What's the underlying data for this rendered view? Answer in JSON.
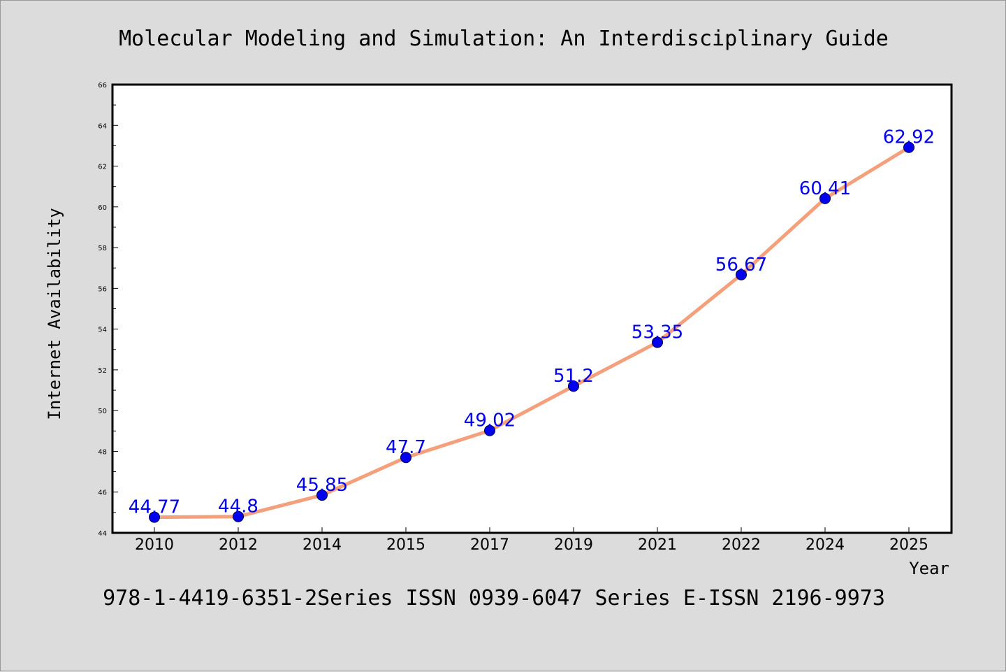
{
  "chart_data": {
    "type": "line",
    "title": "Molecular Modeling and Simulation: An Interdisciplinary Guide",
    "subtitle": "978-1-4419-6351-2Series ISSN 0939-6047 Series E-ISSN 2196-9973",
    "xlabel": "Year",
    "ylabel": "Internet Availability",
    "categories": [
      "2010",
      "2012",
      "2014",
      "2015",
      "2017",
      "2019",
      "2021",
      "2022",
      "2024",
      "2025"
    ],
    "series": [
      {
        "values": [
          44.77,
          44.8,
          45.85,
          47.7,
          49.02,
          51.2,
          53.35,
          56.67,
          60.41,
          62.92
        ],
        "data_labels": [
          "44.77",
          "44.8",
          "45.85",
          "47.7",
          "49.02",
          "51.2",
          "53.35",
          "56.67",
          "60.41",
          "62.92"
        ]
      }
    ],
    "ylim": [
      44,
      66
    ],
    "yticks": [
      "44",
      "46",
      "48",
      "50",
      "52",
      "54",
      "56",
      "58",
      "60",
      "62",
      "64",
      "66"
    ],
    "grid": false,
    "legend": "none",
    "colors": {
      "line": "#f4a07c",
      "marker": "#0000ee",
      "label": "#0000ee",
      "background": "#dcdcdc",
      "plot_background": "#ffffff"
    }
  }
}
